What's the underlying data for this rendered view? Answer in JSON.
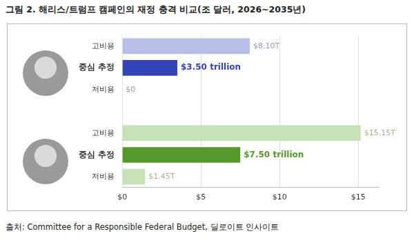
{
  "chart_data": {
    "type": "bar",
    "orientation": "horizontal",
    "title": "그림 2. 해리스/트럼프 캠페인의 재정 충격 비교(조 달러, 2026~2035년)",
    "source": "출처: Committee for a Responsible Federal Budget, 딜로이트 인사이트",
    "categories": [
      "고비용",
      "중심 추정",
      "저비용",
      null,
      "고비용",
      "중심 추정",
      "저비용"
    ],
    "values": [
      8.1,
      3.5,
      0,
      null,
      15.15,
      7.5,
      1.45
    ],
    "value_labels": [
      "$8.10T",
      "$3.50 trillion",
      "$0",
      null,
      "$15.15T",
      "$7.50 trillion",
      "$1.45T"
    ],
    "colors": [
      "#b7bfe9",
      "#3343b8",
      "#b7bfe9",
      null,
      "#c8e2b8",
      "#55992a",
      "#c8e2b8"
    ],
    "xlim": [
      0,
      16.3
    ],
    "xticks": [
      {
        "value": 0,
        "label": "$0"
      },
      {
        "value": 5,
        "label": "$5"
      },
      {
        "value": 10,
        "label": "$10"
      },
      {
        "value": 15,
        "label": "$15"
      }
    ],
    "grid": true,
    "data_labels": true
  }
}
